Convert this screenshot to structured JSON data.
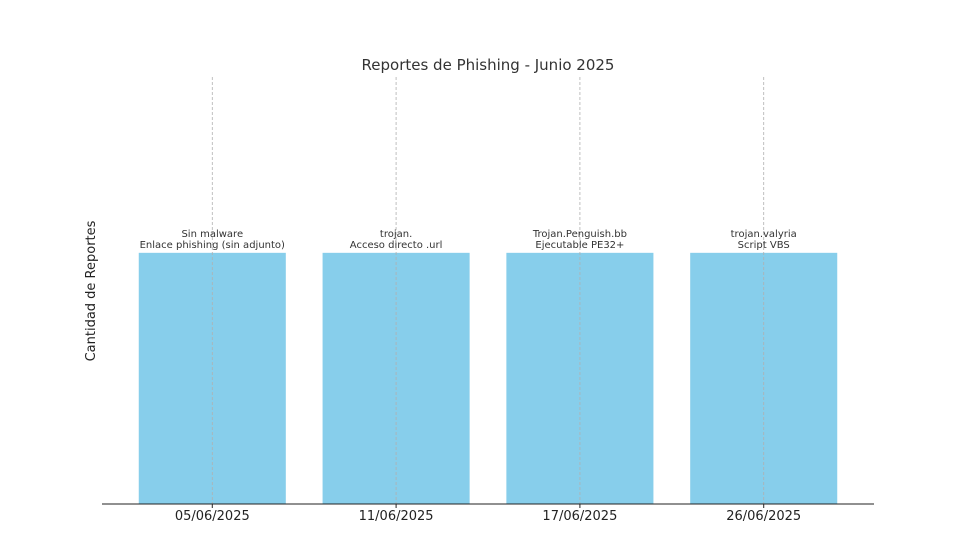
{
  "chart_data": {
    "type": "bar",
    "title": "Reportes de Phishing - Junio 2025",
    "xlabel": "",
    "ylabel": "Cantidad de Reportes",
    "categories": [
      "05/06/2025",
      "11/06/2025",
      "17/06/2025",
      "26/06/2025"
    ],
    "values": [
      1,
      1,
      1,
      1
    ],
    "ylim": [
      0,
      1.7
    ],
    "annotations": [
      [
        "Sin malware",
        "Enlace phishing (sin adjunto)"
      ],
      [
        "trojan.",
        "Acceso directo .url"
      ],
      [
        "Trojan.Penguish.bb",
        "Ejecutable PE32+"
      ],
      [
        "trojan.valyria",
        "Script VBS"
      ]
    ],
    "grid": "vertical",
    "bar_color": "#87CEEB"
  }
}
